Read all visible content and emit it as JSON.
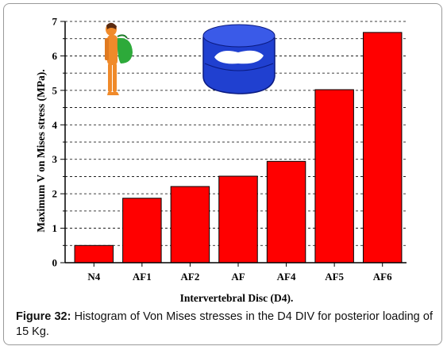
{
  "caption": {
    "label": "Figure 32:",
    "text": "Histogram of Von Mises stresses in the D4 DIV for posterior loading of 15 Kg."
  },
  "colors": {
    "bar": "#ff0000",
    "bar_stroke": "#000000",
    "grid": "#000000",
    "disc": "#2040d0",
    "figure_skin": "#f08a2a",
    "figure_bag": "#2daa3a"
  },
  "illustrations": [
    "human-figure-icon",
    "intervertebral-disc-icon"
  ],
  "chart_data": {
    "type": "bar",
    "categories": [
      "N4",
      "AF1",
      "AF2",
      "AF",
      "AF4",
      "AF5",
      "AF6"
    ],
    "values": [
      0.5,
      1.87,
      2.21,
      2.51,
      2.94,
      5.02,
      6.68
    ],
    "title": "",
    "xlabel": "Intervertebral Disc (D4).",
    "ylabel": "Maximum V on Mises stress (MPa).",
    "ylim": [
      0,
      7
    ],
    "yticks": [
      "0",
      "1",
      "2",
      "3",
      "4",
      "5",
      "6",
      "7"
    ],
    "grid": "horizontal dashed",
    "legend": "none"
  }
}
